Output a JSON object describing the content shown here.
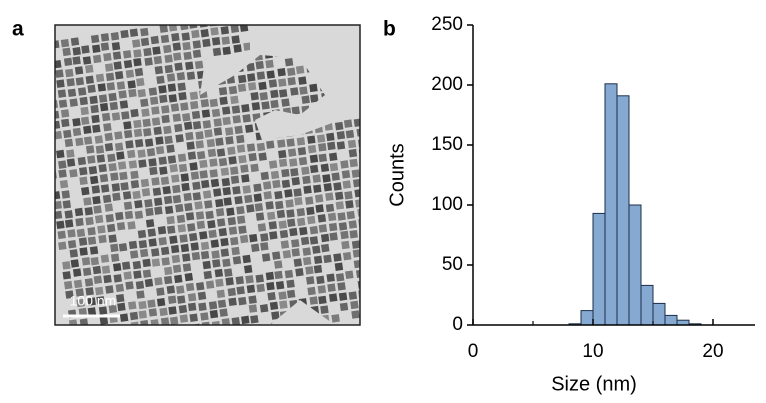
{
  "panel_labels": [
    "a",
    "b"
  ],
  "image": {
    "scale_bar": "100 nm"
  },
  "chart_data": {
    "type": "histogram",
    "xlabel": "Size (nm)",
    "ylabel": "Counts",
    "bins": [
      8,
      9,
      10,
      11,
      12,
      13,
      14,
      15,
      16,
      17,
      18,
      19
    ],
    "values": [
      1,
      12,
      93,
      201,
      191,
      100,
      33,
      18,
      8,
      4,
      1
    ],
    "color": "#86a9d1",
    "edgecolor": "#1c2d4a",
    "xlim": [
      0,
      23.5
    ],
    "xticks": [
      0,
      10,
      20
    ],
    "xminorticks": [
      5,
      15
    ],
    "ylim": [
      0,
      250
    ],
    "yticks": [
      0,
      50,
      100,
      150,
      200,
      250
    ],
    "grid": false
  }
}
